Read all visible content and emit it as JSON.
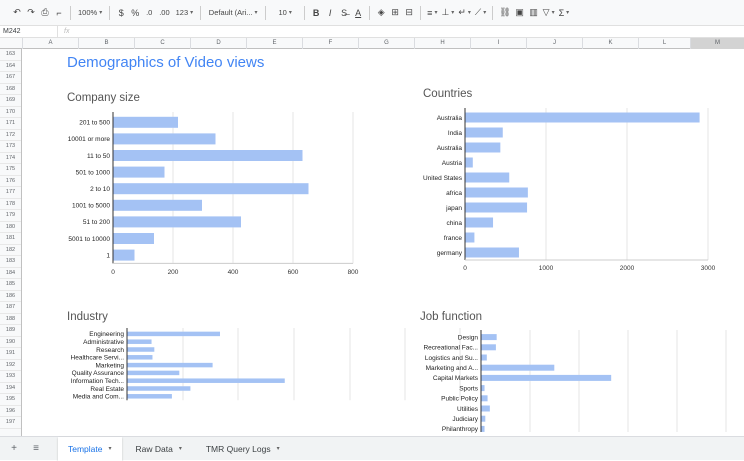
{
  "toolbar": {
    "zoom": "100%",
    "currency": "$",
    "percent": "%",
    "dec_decrease": ".0",
    "dec_increase": ".00",
    "format_more": "123",
    "font": "Default (Ari...",
    "font_size": "10",
    "bold": "B",
    "italic": "I",
    "text_color": "A",
    "functions": "Σ"
  },
  "formula_bar": {
    "name_box": "M242",
    "fx": "fx"
  },
  "columns": [
    "A",
    "B",
    "C",
    "D",
    "E",
    "F",
    "G",
    "H",
    "I",
    "J",
    "K",
    "L",
    "M"
  ],
  "rows": [
    "163",
    "164",
    "167",
    "168",
    "169",
    "170",
    "171",
    "172",
    "173",
    "174",
    "175",
    "176",
    "177",
    "178",
    "179",
    "180",
    "181",
    "182",
    "183",
    "184",
    "185",
    "186",
    "187",
    "188",
    "189",
    "190",
    "191",
    "192",
    "193",
    "194",
    "195",
    "196",
    "197"
  ],
  "page_title": "Demographics of Video views",
  "chart_data": [
    {
      "type": "bar",
      "title": "Company size",
      "categories": [
        "201 to 500",
        "10001 or more",
        "11 to 50",
        "501 to 1000",
        "2 to 10",
        "1001 to 5000",
        "51 to 200",
        "5001 to 10000",
        "1"
      ],
      "values": [
        215,
        340,
        630,
        170,
        650,
        295,
        425,
        135,
        70
      ],
      "xticks": [
        "0",
        "200",
        "400",
        "600",
        "800"
      ],
      "xlim": [
        0,
        800
      ],
      "color": "#a4c2f4"
    },
    {
      "type": "bar",
      "title": "Countries",
      "categories": [
        "Australia",
        "India",
        "Australia",
        "Austria",
        "United States",
        "africa",
        "japan",
        "china",
        "france",
        "germany"
      ],
      "values": [
        2890,
        460,
        430,
        90,
        540,
        770,
        760,
        340,
        110,
        660
      ],
      "xticks": [
        "0",
        "1000",
        "2000",
        "3000"
      ],
      "xlim": [
        0,
        3000
      ],
      "color": "#a4c2f4"
    },
    {
      "type": "bar",
      "title": "Industry",
      "categories": [
        "Engineering",
        "Administrative",
        "Research",
        "Healthcare Servi...",
        "Marketing",
        "Quality Assurance",
        "Information Tech...",
        "Real Estate",
        "Media and Com..."
      ],
      "values": [
        1000,
        260,
        290,
        270,
        920,
        560,
        1700,
        680,
        480
      ],
      "xlim": [
        0,
        3600
      ],
      "color": "#a4c2f4"
    },
    {
      "type": "bar",
      "title": "Job function",
      "categories": [
        "Design",
        "Recreational Fac...",
        "Logistics and Su...",
        "Marketing and A...",
        "Capital Markets",
        "Sports",
        "Public Policy",
        "Utilities",
        "Judiciary",
        "Philanthropy"
      ],
      "values": [
        200,
        190,
        70,
        960,
        1710,
        40,
        80,
        110,
        50,
        40
      ],
      "xlim": [
        0,
        3600
      ],
      "color": "#a4c2f4"
    }
  ],
  "sheet_tabs": {
    "add": "+",
    "list": "≡",
    "tabs": [
      "Template",
      "Raw Data",
      "TMR Query Logs"
    ],
    "active": "Template"
  }
}
